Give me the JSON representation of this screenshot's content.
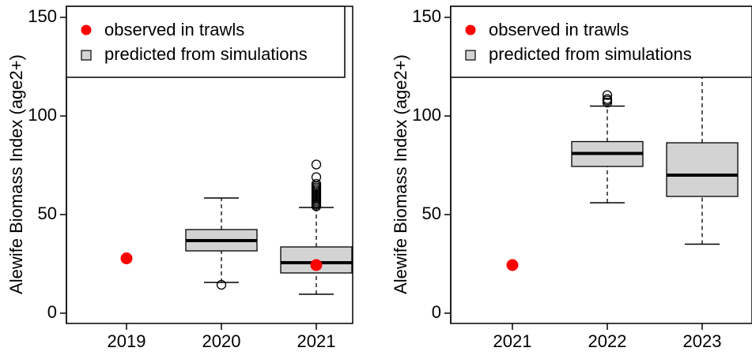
{
  "chart_data": [
    {
      "type": "box",
      "y_label": "Alewife Biomass Index (age2+)",
      "categories": [
        "2019",
        "2020",
        "2021"
      ],
      "ylim": [
        -5.2,
        155.6
      ],
      "yticks": [
        0,
        50,
        100,
        150
      ],
      "series": [
        {
          "name": "observed in trawls",
          "color": "#ff0000",
          "values": [
            27.8,
            null,
            24.4
          ]
        },
        {
          "name": "predicted from simulations",
          "color": "#d3d3d3",
          "whislo": [
            null,
            15.6,
            9.6
          ],
          "q1": [
            null,
            31.6,
            20.4
          ],
          "med": [
            null,
            36.8,
            25.6
          ],
          "q3": [
            null,
            42.4,
            33.6
          ],
          "whishi": [
            null,
            58.4,
            53.6
          ],
          "fliers": [
            null,
            [
              14.4
            ],
            [
              54.2,
              55,
              55.8,
              56.6,
              57.4,
              58.2,
              59,
              59.8,
              60.6,
              61.4,
              62.2,
              63,
              63.8,
              64.6,
              65.6,
              69,
              75.4
            ]
          ]
        }
      ]
    },
    {
      "type": "box",
      "y_label": "Alewife Biomass Index (age2+)",
      "categories": [
        "2021",
        "2022",
        "2023"
      ],
      "ylim": [
        -5.2,
        155.6
      ],
      "yticks": [
        0,
        50,
        100,
        150
      ],
      "series": [
        {
          "name": "observed in trawls",
          "color": "#ff0000",
          "values": [
            24.4,
            null,
            null
          ]
        },
        {
          "name": "predicted from simulations",
          "color": "#d3d3d3",
          "whislo": [
            null,
            56,
            35
          ],
          "q1": [
            null,
            74.4,
            59.2
          ],
          "med": [
            null,
            81,
            70
          ],
          "q3": [
            null,
            87,
            86.4
          ],
          "whishi": [
            null,
            105,
            130
          ],
          "fliers": [
            null,
            [
              106.8,
              107.8,
              108.6,
              110.6
            ],
            []
          ]
        }
      ]
    }
  ]
}
